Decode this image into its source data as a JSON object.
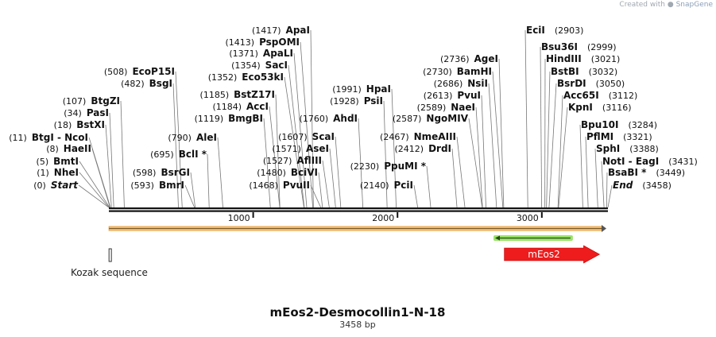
{
  "credit": {
    "prefix": "Created with",
    "brand": "SnapGene"
  },
  "map": {
    "title": "mEos2-Desmocollin1-N-18",
    "length_label": "3458 bp",
    "length": 3458,
    "ticks": [
      {
        "value": 1000,
        "label": "1000"
      },
      {
        "value": 2000,
        "label": "2000"
      },
      {
        "value": 3000,
        "label": "3000"
      }
    ]
  },
  "features": [
    {
      "name": "orf-bar",
      "start": 1,
      "end": 3458,
      "kind": "bar",
      "color": "#f2c88a",
      "outline": "#e8a040",
      "label": ""
    },
    {
      "name": "meos2-inner",
      "start": 2665,
      "end": 3215,
      "kind": "double-arrow",
      "color": "#9be36a",
      "label": ""
    },
    {
      "name": "meos2",
      "start": 2740,
      "end": 3400,
      "kind": "arrow",
      "color": "#ee1c1c",
      "label": "mEos2"
    },
    {
      "name": "kozak",
      "start": 1,
      "end": 10,
      "kind": "box",
      "color": "#cccccc",
      "label": "Kozak sequence"
    }
  ],
  "left_sites": [
    {
      "pos": "(0)",
      "name": "Start",
      "bp": 0,
      "em": true
    },
    {
      "pos": "(1)",
      "name": "NheI",
      "bp": 1
    },
    {
      "pos": "(5)",
      "name": "BmtI",
      "bp": 5
    },
    {
      "pos": "(8)",
      "name": "HaeII",
      "bp": 8
    },
    {
      "pos": "(11)",
      "name": "BtgI  -  NcoI",
      "bp": 11
    },
    {
      "pos": "(18)",
      "name": "BstXI",
      "bp": 18
    },
    {
      "pos": "(34)",
      "name": "PasI",
      "bp": 34
    },
    {
      "pos": "(107)",
      "name": "BtgZI",
      "bp": 107
    },
    {
      "pos": "(482)",
      "name": "BsgI",
      "bp": 482
    },
    {
      "pos": "(508)",
      "name": "EcoP15I",
      "bp": 508
    },
    {
      "pos": "(593)",
      "name": "BmrI",
      "bp": 593
    },
    {
      "pos": "(598)",
      "name": "BsrGI",
      "bp": 598
    },
    {
      "pos": "(695)",
      "name": "BclI *",
      "bp": 695
    },
    {
      "pos": "(790)",
      "name": "AleI",
      "bp": 790
    },
    {
      "pos": "(1119)",
      "name": "BmgBI",
      "bp": 1119
    },
    {
      "pos": "(1184)",
      "name": "AccI",
      "bp": 1184
    },
    {
      "pos": "(1185)",
      "name": "BstZ17I",
      "bp": 1185
    },
    {
      "pos": "(1352)",
      "name": "Eco53kI",
      "bp": 1352
    },
    {
      "pos": "(1354)",
      "name": "SacI",
      "bp": 1354
    },
    {
      "pos": "(1371)",
      "name": "ApaLI",
      "bp": 1371
    },
    {
      "pos": "(1413)",
      "name": "PspOMI",
      "bp": 1413
    },
    {
      "pos": "(1417)",
      "name": "ApaI",
      "bp": 1417
    },
    {
      "pos": "(1468)",
      "name": "PvuII",
      "bp": 1468
    },
    {
      "pos": "(1480)",
      "name": "BciVI",
      "bp": 1480
    },
    {
      "pos": "(1527)",
      "name": "AflIII",
      "bp": 1527
    },
    {
      "pos": "(1571)",
      "name": "AseI",
      "bp": 1571
    },
    {
      "pos": "(1607)",
      "name": "ScaI",
      "bp": 1607
    },
    {
      "pos": "(1760)",
      "name": "AhdI",
      "bp": 1760
    },
    {
      "pos": "(1928)",
      "name": "PsiI",
      "bp": 1928
    },
    {
      "pos": "(1991)",
      "name": "HpaI",
      "bp": 1991
    },
    {
      "pos": "(2140)",
      "name": "PciI",
      "bp": 2140
    },
    {
      "pos": "(2230)",
      "name": "PpuMI *",
      "bp": 2230
    },
    {
      "pos": "(2412)",
      "name": "DrdI",
      "bp": 2412
    },
    {
      "pos": "(2467)",
      "name": "NmeAIII",
      "bp": 2467
    },
    {
      "pos": "(2587)",
      "name": "NgoMIV",
      "bp": 2587
    },
    {
      "pos": "(2589)",
      "name": "NaeI",
      "bp": 2589
    },
    {
      "pos": "(2613)",
      "name": "PvuI",
      "bp": 2613
    },
    {
      "pos": "(2686)",
      "name": "NsiI",
      "bp": 2686
    },
    {
      "pos": "(2730)",
      "name": "BamHI",
      "bp": 2730
    },
    {
      "pos": "(2736)",
      "name": "AgeI",
      "bp": 2736
    }
  ],
  "right_sites": [
    {
      "pos": "(2903)",
      "name": "EciI",
      "bp": 2903
    },
    {
      "pos": "(2999)",
      "name": "Bsu36I",
      "bp": 2999
    },
    {
      "pos": "(3021)",
      "name": "HindIII",
      "bp": 3021
    },
    {
      "pos": "(3032)",
      "name": "BstBI",
      "bp": 3032
    },
    {
      "pos": "(3050)",
      "name": "BsrDI",
      "bp": 3050
    },
    {
      "pos": "(3112)",
      "name": "Acc65I",
      "bp": 3112
    },
    {
      "pos": "(3116)",
      "name": "KpnI",
      "bp": 3116
    },
    {
      "pos": "(3284)",
      "name": "Bpu10I",
      "bp": 3284
    },
    {
      "pos": "(3321)",
      "name": "PflMI",
      "bp": 3321
    },
    {
      "pos": "(3388)",
      "name": "SphI",
      "bp": 3388
    },
    {
      "pos": "(3431)",
      "name": "NotI  -  EagI",
      "bp": 3431
    },
    {
      "pos": "(3449)",
      "name": "BsaBI *",
      "bp": 3449
    },
    {
      "pos": "(3458)",
      "name": "End",
      "bp": 3458,
      "em": true
    }
  ]
}
